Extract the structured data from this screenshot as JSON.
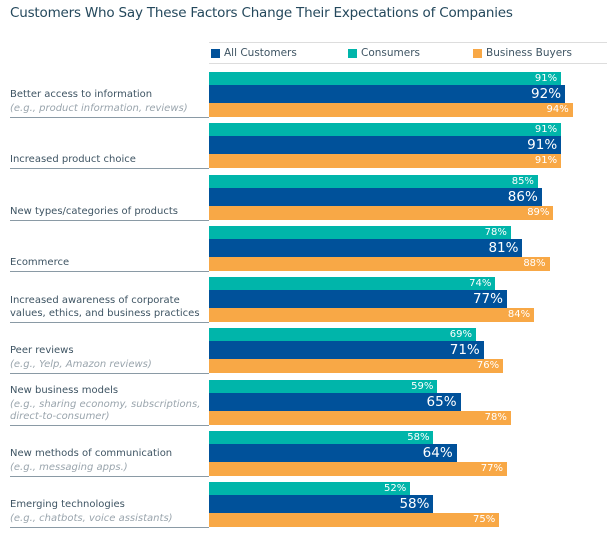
{
  "chart_data": {
    "type": "bar",
    "orientation": "horizontal",
    "title": "Customers Who Say These Factors Change Their Expectations of Companies",
    "xlim": [
      0,
      100
    ],
    "grid": false,
    "legend_position": "top",
    "categories": [
      {
        "label": "Better access to information",
        "note": "(e.g., product information, reviews)"
      },
      {
        "label": "Increased product choice",
        "note": ""
      },
      {
        "label": "New types/categories of products",
        "note": ""
      },
      {
        "label": "Ecommerce",
        "note": ""
      },
      {
        "label": "Increased awareness of corporate values, ethics, and business practices",
        "note": ""
      },
      {
        "label": "Peer reviews",
        "note": "(e.g., Yelp, Amazon reviews)"
      },
      {
        "label": "New business models",
        "note": "(e.g., sharing economy, subscriptions, direct-to-consumer)"
      },
      {
        "label": "New methods of communication",
        "note": "(e.g., messaging apps.)"
      },
      {
        "label": "Emerging technologies",
        "note": "(e.g., chatbots, voice assistants)"
      }
    ],
    "series": [
      {
        "name": "Consumers",
        "color": "#00b5aa",
        "values": [
          91,
          91,
          85,
          78,
          74,
          69,
          59,
          58,
          52
        ]
      },
      {
        "name": "All Customers",
        "color": "#00519a",
        "values": [
          92,
          91,
          86,
          81,
          77,
          71,
          65,
          64,
          58
        ]
      },
      {
        "name": "Business Buyers",
        "color": "#f8a846",
        "values": [
          94,
          91,
          89,
          88,
          84,
          76,
          78,
          77,
          75
        ]
      }
    ],
    "legend": [
      "All Customers",
      "Consumers",
      "Business Buyers"
    ]
  }
}
